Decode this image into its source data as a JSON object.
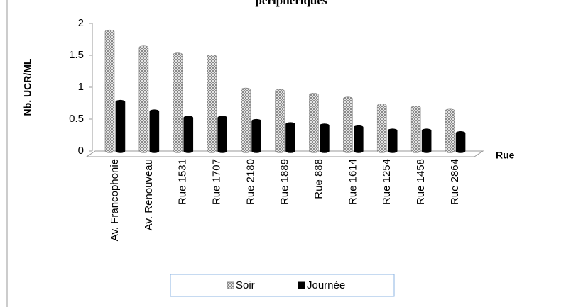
{
  "chart_data": {
    "type": "bar",
    "title": "périphériques",
    "y_label": "Nb. UCR/ML",
    "x_label": "Rue",
    "categories": [
      "Av. Francophonie",
      "Av. Renouveau",
      "Rue 1531",
      "Rue 1707",
      "Rue 2180",
      "Rue 1889",
      "Rue 888",
      "Rue 1614",
      "Rue 1254",
      "Rue 1458",
      "Rue 2864"
    ],
    "series": [
      {
        "name": "Soir",
        "color": "#8c8c8c",
        "values": [
          1.87,
          1.62,
          1.51,
          1.48,
          0.96,
          0.94,
          0.88,
          0.82,
          0.71,
          0.68,
          0.63
        ]
      },
      {
        "name": "Journée",
        "color": "#000000",
        "values": [
          0.77,
          0.62,
          0.52,
          0.52,
          0.47,
          0.42,
          0.4,
          0.37,
          0.32,
          0.32,
          0.28
        ]
      }
    ],
    "ylim": [
      0,
      2
    ],
    "yticks": [
      0,
      0.5,
      1,
      1.5,
      2
    ],
    "grid": false,
    "legend": "bottom"
  }
}
